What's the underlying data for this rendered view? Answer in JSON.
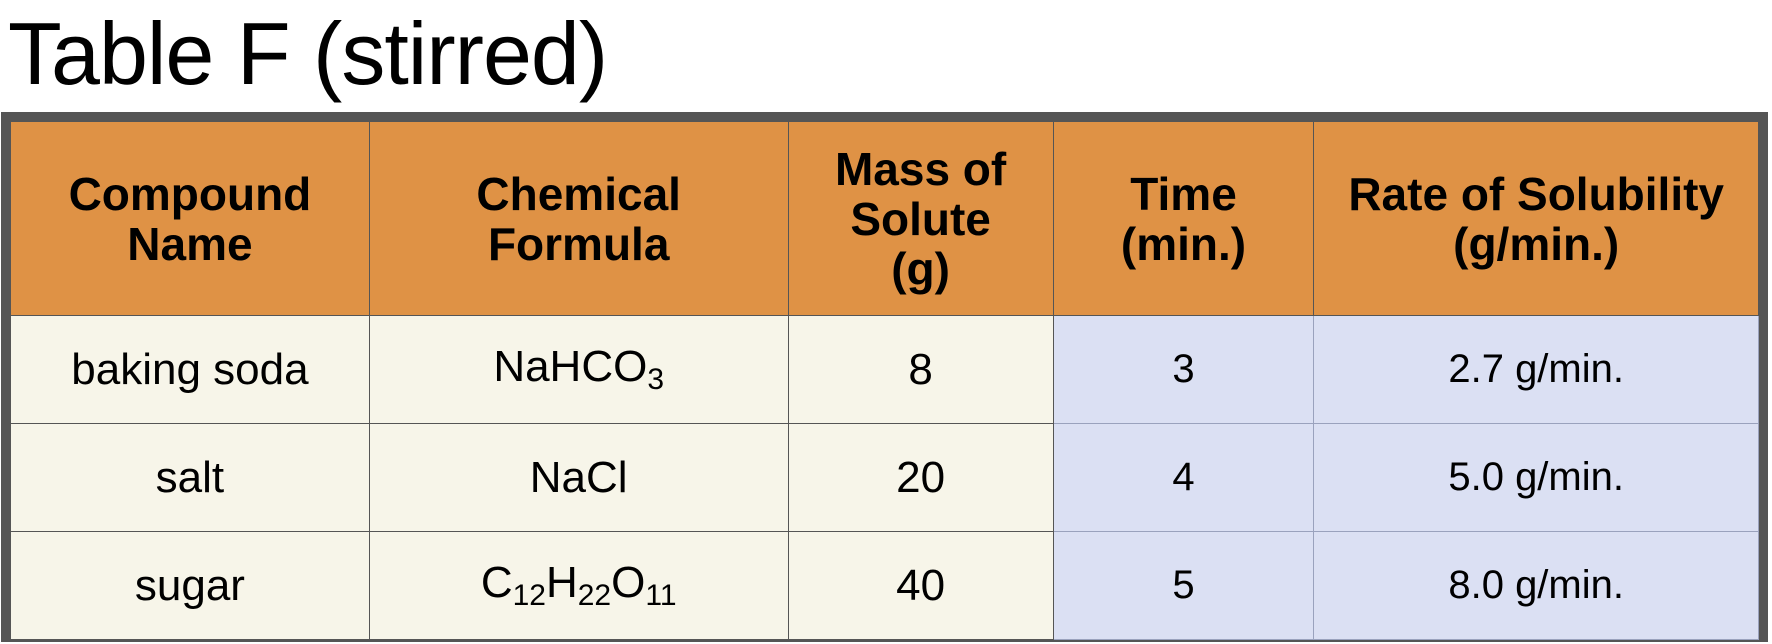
{
  "title": "Table F (stirred)",
  "headers": [
    [
      "Compound",
      "Name"
    ],
    [
      "Chemical",
      "Formula"
    ],
    [
      "Mass of",
      "Solute",
      "(g)"
    ],
    [
      "Time",
      "(min.)"
    ],
    [
      "Rate of Solubility",
      "(g/min.)"
    ]
  ],
  "rows": [
    {
      "compound": "baking soda",
      "formula_parts": [
        [
          "NaHCO",
          false
        ],
        [
          "3",
          true
        ]
      ],
      "mass": "8",
      "time": "3",
      "rate": "2.7 g/min."
    },
    {
      "compound": "salt",
      "formula_parts": [
        [
          "NaCl",
          false
        ]
      ],
      "mass": "20",
      "time": "4",
      "rate": "5.0 g/min."
    },
    {
      "compound": "sugar",
      "formula_parts": [
        [
          "C",
          false
        ],
        [
          "12",
          true
        ],
        [
          "H",
          false
        ],
        [
          "22",
          true
        ],
        [
          "O",
          false
        ],
        [
          "11",
          true
        ]
      ],
      "mass": "40",
      "time": "5",
      "rate": "8.0 g/min."
    }
  ],
  "colors": {
    "header_bg": "#df9245",
    "cream_bg": "#f7f5e9",
    "blue_bg": "#dbe0f3",
    "border": "#555555"
  }
}
